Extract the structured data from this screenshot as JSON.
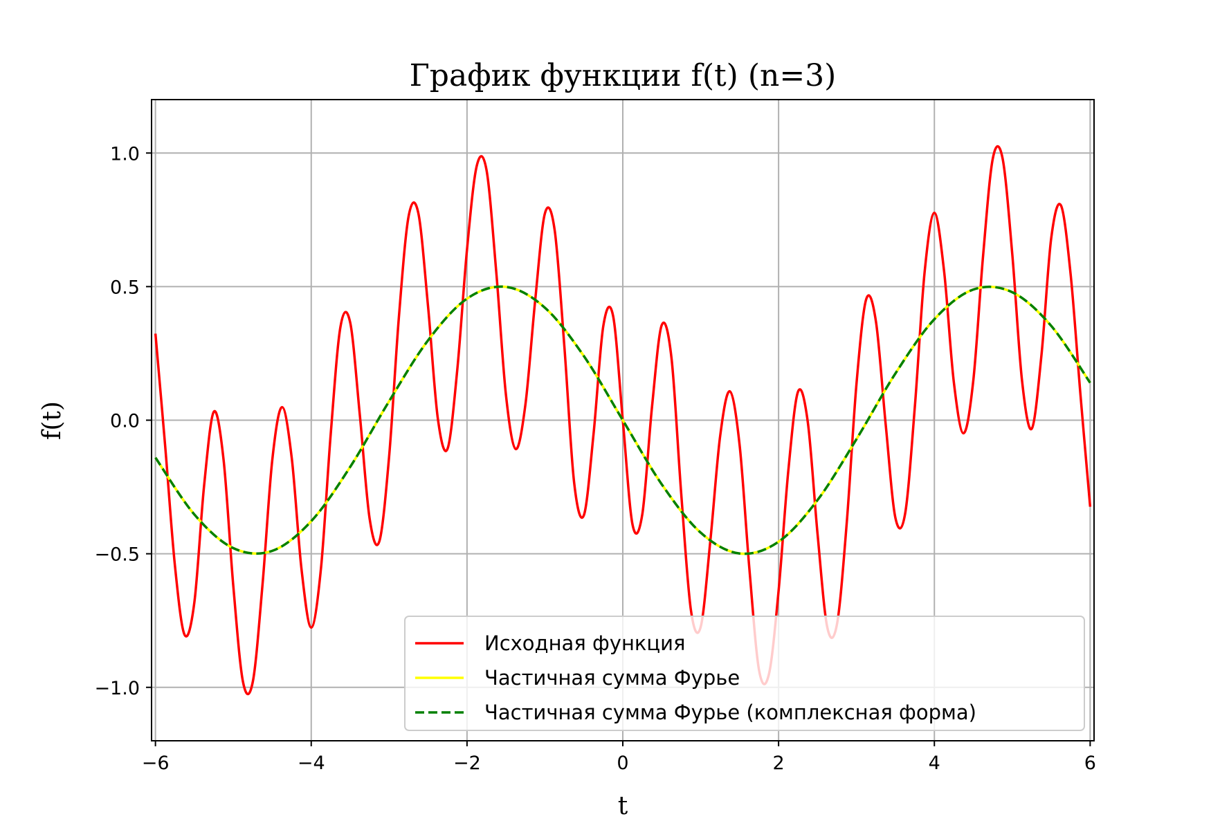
{
  "chart_data": {
    "type": "line",
    "title": "График функции f(t) (n=3)",
    "xlabel": "t",
    "ylabel": "f(t)",
    "xlim": [
      -6.05,
      6.05
    ],
    "ylim": [
      -1.2,
      1.2
    ],
    "xticks": [
      -6,
      -4,
      -2,
      0,
      2,
      4,
      6
    ],
    "xtick_labels": [
      "−6",
      "−4",
      "−2",
      "0",
      "2",
      "4",
      "6"
    ],
    "yticks": [
      -1.0,
      -0.5,
      0.0,
      0.5,
      1.0
    ],
    "ytick_labels": [
      "−1.0",
      "−0.5",
      "0.0",
      "0.5",
      "1.0"
    ],
    "grid": true,
    "legend_position": "lower-right",
    "series": [
      {
        "name": "Исходная функция",
        "color": "#ff0000",
        "style": "solid",
        "x": [
          -6.0,
          -5.875,
          -5.75,
          -5.625,
          -5.5,
          -5.375,
          -5.25,
          -5.125,
          -5.0,
          -4.875,
          -4.75,
          -4.625,
          -4.5,
          -4.375,
          -4.25,
          -4.125,
          -4.0,
          -3.875,
          -3.75,
          -3.625,
          -3.5,
          -3.375,
          -3.25,
          -3.125,
          -3.0,
          -2.875,
          -2.75,
          -2.625,
          -2.5,
          -2.375,
          -2.25,
          -2.125,
          -2.0,
          -1.875,
          -1.75,
          -1.625,
          -1.5,
          -1.375,
          -1.25,
          -1.125,
          -1.0,
          -0.875,
          -0.75,
          -0.625,
          -0.5,
          -0.375,
          -0.25,
          -0.125,
          0.0,
          0.125,
          0.25,
          0.375,
          0.5,
          0.625,
          0.75,
          0.875,
          1.0,
          1.125,
          1.25,
          1.375,
          1.5,
          1.625,
          1.75,
          1.875,
          2.0,
          2.125,
          2.25,
          2.375,
          2.5,
          2.625,
          2.75,
          2.875,
          3.0,
          3.125,
          3.25,
          3.375,
          3.5,
          3.625,
          3.75,
          3.875,
          4.0,
          4.125,
          4.25,
          4.375,
          4.5,
          4.625,
          4.75,
          4.875,
          5.0,
          5.125,
          5.25,
          5.375,
          5.5,
          5.625,
          5.75,
          5.875,
          6.0
        ],
        "y": [
          0.324,
          -0.097,
          -0.544,
          -0.804,
          -0.681,
          -0.244,
          0.032,
          -0.149,
          -0.622,
          -0.981,
          -0.979,
          -0.614,
          -0.149,
          0.049,
          -0.142,
          -0.557,
          -0.776,
          -0.555,
          -0.053,
          0.349,
          0.366,
          0.016,
          -0.369,
          -0.453,
          -0.136,
          0.384,
          0.763,
          0.775,
          0.425,
          0.007,
          -0.107,
          0.189,
          0.639,
          0.952,
          0.937,
          0.556,
          0.094,
          -0.108,
          0.059,
          0.448,
          0.774,
          0.712,
          0.275,
          -0.233,
          -0.356,
          -0.05,
          0.353,
          0.391,
          0.0,
          -0.391,
          -0.353,
          0.05,
          0.356,
          0.233,
          -0.275,
          -0.712,
          -0.774,
          -0.448,
          -0.059,
          0.108,
          -0.094,
          -0.556,
          -0.937,
          -0.952,
          -0.639,
          -0.189,
          0.107,
          -0.007,
          -0.425,
          -0.775,
          -0.763,
          -0.384,
          0.136,
          0.453,
          0.369,
          -0.016,
          -0.366,
          -0.349,
          0.053,
          0.555,
          0.776,
          0.557,
          0.142,
          -0.049,
          0.149,
          0.614,
          0.979,
          0.981,
          0.622,
          0.149,
          -0.032,
          0.244,
          0.681,
          0.804,
          0.544,
          0.097,
          -0.324
        ]
      },
      {
        "name": "Частичная сумма Фурье",
        "color": "#ffff00",
        "style": "solid",
        "x": [
          -6.0,
          -5.5,
          -5.0,
          -4.5,
          -4.0,
          -3.5,
          -3.0,
          -2.5,
          -2.0,
          -1.5,
          -1.0,
          -0.5,
          0.0,
          0.5,
          1.0,
          1.5,
          2.0,
          2.5,
          3.0,
          3.5,
          4.0,
          4.5,
          5.0,
          5.5,
          6.0
        ],
        "y": [
          -0.14,
          -0.353,
          -0.479,
          -0.489,
          -0.378,
          -0.175,
          0.071,
          0.299,
          0.455,
          0.499,
          0.421,
          0.24,
          0.0,
          -0.24,
          -0.421,
          -0.499,
          -0.455,
          -0.299,
          -0.071,
          0.175,
          0.378,
          0.489,
          0.479,
          0.353,
          0.14
        ]
      },
      {
        "name": "Частичная сумма Фурье (комплексная форма)",
        "color": "#008000",
        "style": "dashed",
        "x": [
          -6.0,
          -5.5,
          -5.0,
          -4.5,
          -4.0,
          -3.5,
          -3.0,
          -2.5,
          -2.0,
          -1.5,
          -1.0,
          -0.5,
          0.0,
          0.5,
          1.0,
          1.5,
          2.0,
          2.5,
          3.0,
          3.5,
          4.0,
          4.5,
          5.0,
          5.5,
          6.0
        ],
        "y": [
          -0.14,
          -0.353,
          -0.479,
          -0.489,
          -0.378,
          -0.175,
          0.071,
          0.299,
          0.455,
          0.499,
          0.421,
          0.24,
          0.0,
          -0.24,
          -0.421,
          -0.499,
          -0.455,
          -0.299,
          -0.071,
          0.175,
          0.378,
          0.489,
          0.479,
          0.353,
          0.14
        ]
      }
    ]
  }
}
